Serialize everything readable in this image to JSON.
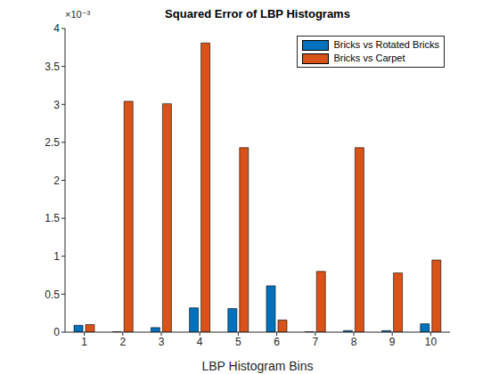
{
  "chart_data": {
    "type": "bar",
    "title": "Squared Error of LBP Histograms",
    "x_label": "LBP Histogram Bins",
    "annotations": [
      "×10⁻³"
    ],
    "categories": [
      1,
      2,
      3,
      4,
      5,
      6,
      7,
      8,
      9,
      10
    ],
    "series": [
      {
        "name": "Bricks vs Rotated Bricks",
        "color": "#0072BD",
        "values": [
          0.09,
          0.005,
          0.06,
          0.32,
          0.31,
          0.61,
          0.005,
          0.02,
          0.02,
          0.11
        ]
      },
      {
        "name": "Bricks vs Carpet",
        "color": "#D95319",
        "values": [
          0.1,
          3.04,
          3.01,
          3.81,
          2.43,
          0.16,
          0.8,
          2.43,
          0.78,
          0.95
        ]
      }
    ],
    "ylim": [
      0,
      4
    ],
    "yticks": [
      0,
      0.5,
      1,
      1.5,
      2,
      2.5,
      3,
      3.5,
      4
    ],
    "grid": false,
    "legend": "northeast"
  }
}
